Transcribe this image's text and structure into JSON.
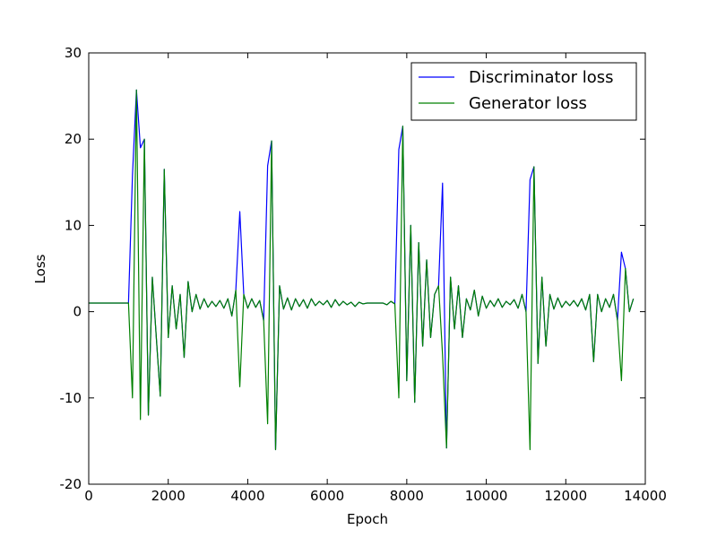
{
  "chart_data": {
    "type": "line",
    "x_label": "Epoch",
    "y_label": "Loss",
    "xlim": [
      0,
      14000
    ],
    "xticks": [
      0,
      2000,
      4000,
      6000,
      8000,
      10000,
      12000,
      14000
    ],
    "ylim": [
      -20,
      30
    ],
    "yticks": [
      -20,
      -10,
      0,
      10,
      20,
      30
    ],
    "legend": "upper right",
    "x": [
      0,
      100,
      200,
      300,
      400,
      500,
      600,
      700,
      800,
      900,
      1000,
      1100,
      1200,
      1300,
      1400,
      1500,
      1600,
      1700,
      1800,
      1900,
      2000,
      2100,
      2200,
      2300,
      2400,
      2500,
      2600,
      2700,
      2800,
      2900,
      3000,
      3100,
      3200,
      3300,
      3400,
      3500,
      3600,
      3700,
      3800,
      3900,
      4000,
      4100,
      4200,
      4300,
      4400,
      4500,
      4600,
      4700,
      4800,
      4900,
      5000,
      5100,
      5200,
      5300,
      5400,
      5500,
      5600,
      5700,
      5800,
      5900,
      6000,
      6100,
      6200,
      6300,
      6400,
      6500,
      6600,
      6700,
      6800,
      6900,
      7000,
      7100,
      7200,
      7300,
      7400,
      7500,
      7600,
      7700,
      7800,
      7900,
      8000,
      8100,
      8200,
      8300,
      8400,
      8500,
      8600,
      8700,
      8800,
      8900,
      9000,
      9100,
      9200,
      9300,
      9400,
      9500,
      9600,
      9700,
      9800,
      9900,
      10000,
      10100,
      10200,
      10300,
      10400,
      10500,
      10600,
      10700,
      10800,
      10900,
      11000,
      11100,
      11200,
      11300,
      11400,
      11500,
      11600,
      11700,
      11800,
      11900,
      12000,
      12100,
      12200,
      12300,
      12400,
      12500,
      12600,
      12700,
      12800,
      12900,
      13000,
      13100,
      13200,
      13300,
      13400,
      13500,
      13600,
      13700
    ],
    "series": [
      {
        "name": "Discriminator loss",
        "color": "#0000ff",
        "values": [
          1,
          1,
          1,
          1,
          1,
          1,
          1,
          1,
          1,
          1,
          1,
          15.8,
          25.7,
          19,
          20,
          -12,
          4,
          -3,
          -9.8,
          16.5,
          -3,
          3,
          -2,
          2,
          -5.3,
          3.5,
          0,
          2,
          0.3,
          1.5,
          0.5,
          1.2,
          0.6,
          1.3,
          0.4,
          1.5,
          -0.5,
          2.5,
          11.6,
          2,
          0.4,
          1.5,
          0.5,
          1.3,
          -1,
          16.9,
          19.8,
          -16,
          3,
          0.3,
          1.6,
          0.2,
          1.5,
          0.6,
          1.4,
          0.4,
          1.5,
          0.7,
          1.2,
          0.8,
          1.3,
          0.5,
          1.4,
          0.7,
          1.2,
          0.8,
          1.1,
          0.6,
          1.1,
          0.9,
          1,
          1,
          1,
          1,
          1,
          0.8,
          1.2,
          0.9,
          18.8,
          21.5,
          -8,
          10,
          -10.5,
          8,
          -4,
          6,
          -3,
          2,
          3,
          14.9,
          -15.8,
          4,
          -2,
          3,
          -3,
          1.5,
          0.2,
          2.5,
          -0.5,
          1.8,
          0.4,
          1.3,
          0.6,
          1.5,
          0.5,
          1.2,
          0.8,
          1.4,
          0.4,
          2,
          0,
          15.3,
          16.8,
          -6,
          4,
          -4,
          2,
          0.3,
          1.6,
          0.5,
          1.2,
          0.7,
          1.3,
          0.6,
          1.5,
          0.2,
          2,
          -5.8,
          2,
          0,
          1.5,
          0.5,
          2,
          -1,
          6.9,
          5,
          0,
          1.5
        ]
      },
      {
        "name": "Generator loss",
        "color": "#008000",
        "values": [
          1,
          1,
          1,
          1,
          1,
          1,
          1,
          1,
          1,
          1,
          1,
          -10,
          25.7,
          -12.5,
          20,
          -12,
          4,
          -3,
          -9.8,
          16.5,
          -3,
          3,
          -2,
          2,
          -5.3,
          3.5,
          0,
          2,
          0.3,
          1.5,
          0.5,
          1.2,
          0.6,
          1.3,
          0.4,
          1.5,
          -0.5,
          2.5,
          -8.7,
          2,
          0.4,
          1.5,
          0.5,
          1.3,
          -1,
          -13,
          19.8,
          -16,
          3,
          0.3,
          1.6,
          0.2,
          1.5,
          0.6,
          1.4,
          0.4,
          1.5,
          0.7,
          1.2,
          0.8,
          1.3,
          0.5,
          1.4,
          0.7,
          1.2,
          0.8,
          1.1,
          0.6,
          1.1,
          0.9,
          1,
          1,
          1,
          1,
          1,
          0.8,
          1.2,
          0.9,
          -10,
          21.5,
          -8,
          10,
          -10.5,
          8,
          -4,
          6,
          -3,
          2,
          3,
          -5,
          -15.8,
          4,
          -2,
          3,
          -3,
          1.5,
          0.2,
          2.5,
          -0.5,
          1.8,
          0.4,
          1.3,
          0.6,
          1.5,
          0.5,
          1.2,
          0.8,
          1.4,
          0.4,
          2,
          0,
          -16,
          16.8,
          -6,
          4,
          -4,
          2,
          0.3,
          1.6,
          0.5,
          1.2,
          0.7,
          1.3,
          0.6,
          1.5,
          0.2,
          2,
          -5.8,
          2,
          0,
          1.5,
          0.5,
          2,
          -1,
          -8,
          5,
          0,
          1.5
        ]
      }
    ]
  }
}
